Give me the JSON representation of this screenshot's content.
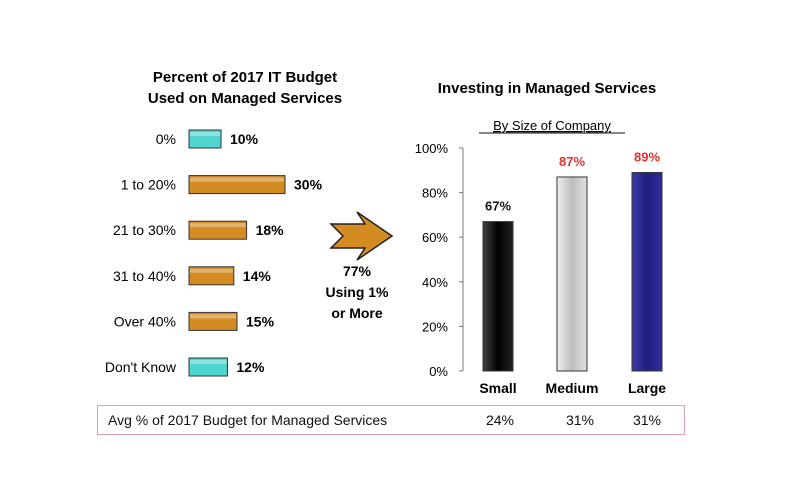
{
  "chart_data": [
    {
      "type": "bar",
      "orientation": "horizontal",
      "title": "Percent of 2017 IT Budget Used on Managed Services",
      "title_lines": [
        "Percent of 2017 IT Budget",
        "Used on Managed Services"
      ],
      "categories": [
        "0%",
        "1 to 20%",
        "21 to 30%",
        "31 to 40%",
        "Over 40%",
        "Don't Know"
      ],
      "values": [
        10,
        30,
        18,
        14,
        15,
        12
      ],
      "value_labels": [
        "10%",
        "30%",
        "18%",
        "14%",
        "15%",
        "12%"
      ],
      "bar_colors": [
        "#4fd6d0",
        "#d38b22",
        "#d38b22",
        "#d38b22",
        "#d38b22",
        "#4fd6d0"
      ],
      "xlim": [
        0,
        30
      ]
    },
    {
      "type": "bar",
      "title": "Investing in Managed Services",
      "subtitle": "By Size of Company",
      "categories": [
        "Small",
        "Medium",
        "Large"
      ],
      "values": [
        67,
        87,
        89
      ],
      "value_labels": [
        "67%",
        "87%",
        "89%"
      ],
      "label_colors": [
        "#111111",
        "#e03030",
        "#e03030"
      ],
      "bar_colors": [
        "#0a0a0a",
        "#c8c8c8",
        "#24248a"
      ],
      "yticks": [
        "0%",
        "20%",
        "40%",
        "60%",
        "80%",
        "100%"
      ],
      "ylim": [
        0,
        100
      ]
    }
  ],
  "callout": {
    "lines": [
      "77%",
      "Using 1%",
      "or More"
    ],
    "arrow_color": "#d38b22"
  },
  "summary": {
    "label": "Avg % of 2017 Budget for Managed Services",
    "values": [
      "24%",
      "31%",
      "31%"
    ]
  }
}
